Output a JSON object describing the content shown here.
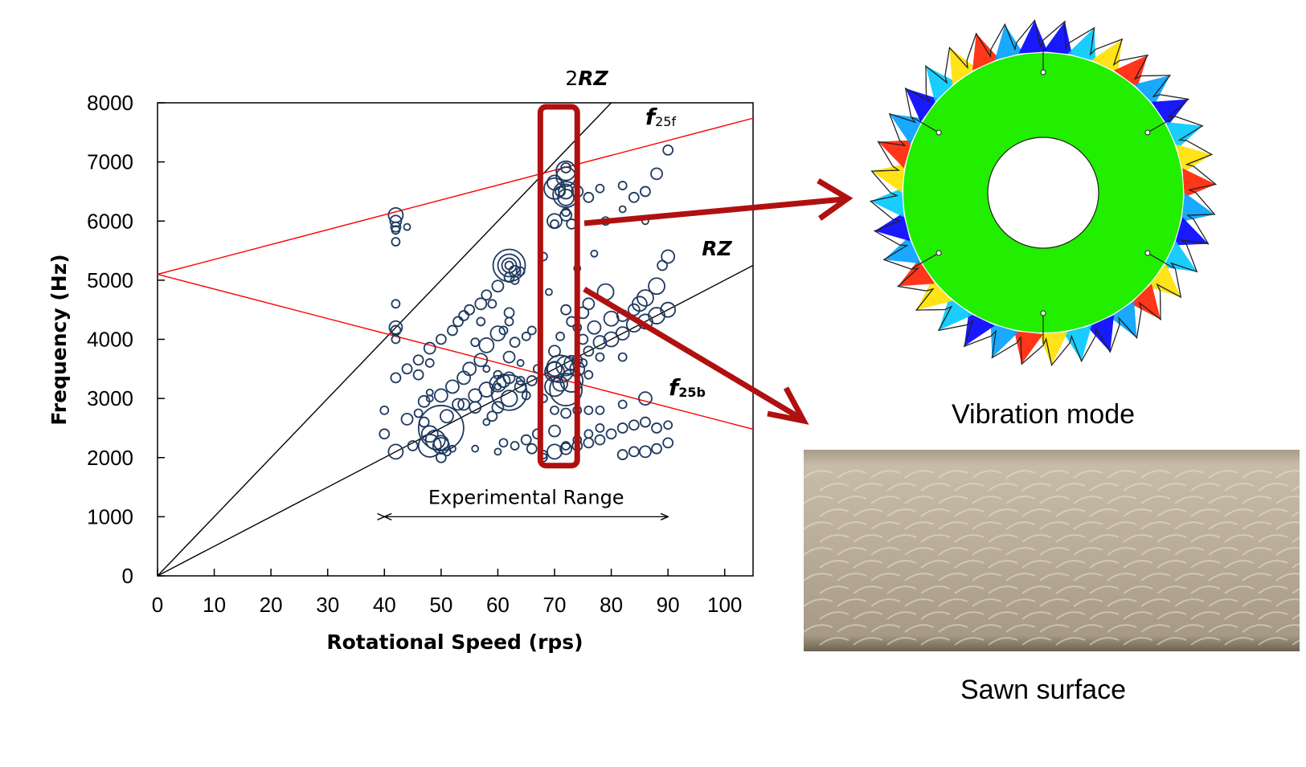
{
  "chart_data": {
    "type": "scatter",
    "xlabel": "Rotational Speed (rps)",
    "ylabel": "Frequency (Hz)",
    "xlim": [
      0,
      105
    ],
    "ylim": [
      0,
      8000
    ],
    "x_ticks": [
      0,
      10,
      20,
      30,
      40,
      50,
      60,
      70,
      80,
      90,
      100
    ],
    "y_ticks": [
      0,
      1000,
      2000,
      3000,
      4000,
      5000,
      6000,
      7000,
      8000
    ],
    "grid": false,
    "lines": [
      {
        "label_prefix": "2",
        "label_main": "RZ",
        "label_sub": "",
        "color": "#000000",
        "x": [
          0,
          80
        ],
        "y": [
          0,
          8000
        ]
      },
      {
        "label_prefix": "",
        "label_main": "RZ",
        "label_sub": "",
        "color": "#000000",
        "x": [
          0,
          105
        ],
        "y": [
          0,
          5250
        ]
      },
      {
        "label_prefix": "",
        "label_main": "f",
        "label_sub": "25f",
        "color": "#ff0000",
        "x": [
          0,
          105
        ],
        "y": [
          5100,
          7740
        ]
      },
      {
        "label_prefix": "",
        "label_main": "f",
        "label_sub": "25b",
        "color": "#ff0000",
        "x": [
          0,
          105
        ],
        "y": [
          5100,
          2480
        ]
      }
    ],
    "points": [
      [
        42,
        6100,
        9
      ],
      [
        42,
        6000,
        7
      ],
      [
        42,
        5900,
        6
      ],
      [
        42,
        5850,
        5
      ],
      [
        44,
        5900,
        4
      ],
      [
        42,
        5650,
        5
      ],
      [
        42,
        4600,
        5
      ],
      [
        42,
        4200,
        8
      ],
      [
        42,
        4150,
        6
      ],
      [
        42,
        4000,
        5
      ],
      [
        40,
        2800,
        5
      ],
      [
        40,
        2400,
        6
      ],
      [
        42,
        3350,
        6
      ],
      [
        44,
        3500,
        6
      ],
      [
        46,
        3650,
        6
      ],
      [
        48,
        3850,
        7
      ],
      [
        48,
        3600,
        5
      ],
      [
        48,
        3100,
        4
      ],
      [
        48,
        3000,
        4
      ],
      [
        46,
        3400,
        6
      ],
      [
        44,
        2650,
        7
      ],
      [
        42,
        2100,
        9
      ],
      [
        45,
        2200,
        6
      ],
      [
        46,
        2750,
        5
      ],
      [
        47,
        2600,
        6
      ],
      [
        48,
        2400,
        10
      ],
      [
        48,
        2200,
        14
      ],
      [
        49,
        2300,
        12
      ],
      [
        50,
        2250,
        9
      ],
      [
        50,
        2500,
        28
      ],
      [
        50,
        2200,
        10
      ],
      [
        50,
        2000,
        6
      ],
      [
        51,
        2100,
        5
      ],
      [
        52,
        2150,
        4
      ],
      [
        47,
        2950,
        7
      ],
      [
        50,
        3050,
        8
      ],
      [
        52,
        3200,
        8
      ],
      [
        54,
        3350,
        8
      ],
      [
        55,
        3500,
        8
      ],
      [
        57,
        3650,
        8
      ],
      [
        58,
        3900,
        9
      ],
      [
        60,
        4100,
        9
      ],
      [
        51,
        2700,
        8
      ],
      [
        53,
        2900,
        7
      ],
      [
        54,
        2900,
        7
      ],
      [
        56,
        2850,
        7
      ],
      [
        56,
        3050,
        8
      ],
      [
        58,
        3150,
        9
      ],
      [
        60,
        3250,
        10
      ],
      [
        61,
        3300,
        8
      ],
      [
        50,
        4000,
        6
      ],
      [
        52,
        4150,
        6
      ],
      [
        53,
        4300,
        6
      ],
      [
        54,
        4400,
        6
      ],
      [
        55,
        4500,
        6
      ],
      [
        57,
        4600,
        7
      ],
      [
        58,
        4750,
        6
      ],
      [
        60,
        4900,
        7
      ],
      [
        62,
        5050,
        6
      ],
      [
        63,
        5150,
        7
      ],
      [
        58,
        2600,
        4
      ],
      [
        59,
        2700,
        6
      ],
      [
        60,
        2850,
        7
      ],
      [
        62,
        3000,
        10
      ],
      [
        62,
        3100,
        22
      ],
      [
        64,
        3200,
        7
      ],
      [
        66,
        3300,
        6
      ],
      [
        62,
        5250,
        20
      ],
      [
        62,
        5250,
        14
      ],
      [
        62,
        5250,
        9
      ],
      [
        62,
        5250,
        5
      ],
      [
        64,
        5150,
        5
      ],
      [
        63,
        5000,
        5
      ],
      [
        59,
        4600,
        5
      ],
      [
        57,
        4300,
        5
      ],
      [
        61,
        4150,
        5
      ],
      [
        62,
        4450,
        6
      ],
      [
        62,
        4300,
        5
      ],
      [
        62,
        3700,
        7
      ],
      [
        63,
        3950,
        6
      ],
      [
        65,
        4050,
        5
      ],
      [
        66,
        4150,
        5
      ],
      [
        64,
        3600,
        4
      ],
      [
        67,
        3500,
        5
      ],
      [
        60,
        3200,
        4
      ],
      [
        56,
        3950,
        5
      ],
      [
        58,
        3500,
        4
      ],
      [
        60,
        3400,
        5
      ],
      [
        62,
        3350,
        7
      ],
      [
        64,
        3300,
        5
      ],
      [
        65,
        3050,
        5
      ],
      [
        56,
        2150,
        4
      ],
      [
        60,
        2100,
        4
      ],
      [
        61,
        2250,
        5
      ],
      [
        63,
        2200,
        5
      ],
      [
        65,
        2300,
        6
      ],
      [
        67,
        2400,
        6
      ],
      [
        70,
        3500,
        9
      ],
      [
        70,
        3450,
        12
      ],
      [
        71,
        3500,
        17
      ],
      [
        72,
        3550,
        12
      ],
      [
        73,
        3600,
        9
      ],
      [
        74,
        3500,
        9
      ],
      [
        74,
        3650,
        6
      ],
      [
        70,
        3200,
        12
      ],
      [
        71,
        3250,
        9
      ],
      [
        73,
        3300,
        14
      ],
      [
        72,
        3150,
        20
      ],
      [
        68,
        5400,
        5
      ],
      [
        69,
        4800,
        4
      ],
      [
        70,
        3800,
        7
      ],
      [
        71,
        4050,
        5
      ],
      [
        73,
        4300,
        6
      ],
      [
        72,
        4500,
        6
      ],
      [
        75,
        4450,
        7
      ],
      [
        76,
        4600,
        7
      ],
      [
        74,
        4200,
        5
      ],
      [
        70,
        6550,
        13
      ],
      [
        70,
        6650,
        9
      ],
      [
        71,
        6500,
        6
      ],
      [
        72,
        6750,
        12
      ],
      [
        72,
        6500,
        9
      ],
      [
        72,
        6400,
        10
      ],
      [
        72,
        6450,
        16
      ],
      [
        72,
        6850,
        12
      ],
      [
        72,
        6900,
        6
      ],
      [
        70,
        6000,
        9
      ],
      [
        70,
        5950,
        5
      ],
      [
        72,
        6100,
        7
      ],
      [
        72,
        6150,
        5
      ],
      [
        73,
        5950,
        6
      ],
      [
        74,
        6500,
        7
      ],
      [
        76,
        6400,
        6
      ],
      [
        78,
        6550,
        5
      ],
      [
        82,
        6600,
        5
      ],
      [
        74,
        5200,
        4
      ],
      [
        77,
        5450,
        4
      ],
      [
        79,
        6000,
        5
      ],
      [
        82,
        6200,
        4
      ],
      [
        84,
        6400,
        6
      ],
      [
        86,
        6500,
        6
      ],
      [
        88,
        6800,
        7
      ],
      [
        90,
        7200,
        6
      ],
      [
        86,
        6000,
        4
      ],
      [
        75,
        4000,
        6
      ],
      [
        77,
        4200,
        8
      ],
      [
        80,
        4350,
        9
      ],
      [
        82,
        4400,
        7
      ],
      [
        84,
        4500,
        7
      ],
      [
        85,
        4600,
        9
      ],
      [
        86,
        4700,
        10
      ],
      [
        88,
        4900,
        10
      ],
      [
        89,
        5250,
        6
      ],
      [
        90,
        5400,
        8
      ],
      [
        76,
        3800,
        6
      ],
      [
        78,
        3950,
        8
      ],
      [
        80,
        4000,
        9
      ],
      [
        82,
        4100,
        8
      ],
      [
        84,
        4250,
        9
      ],
      [
        86,
        4300,
        9
      ],
      [
        88,
        4400,
        10
      ],
      [
        90,
        4500,
        9
      ],
      [
        75,
        3600,
        5
      ],
      [
        76,
        3400,
        5
      ],
      [
        78,
        3700,
        5
      ],
      [
        82,
        3700,
        5
      ],
      [
        79,
        4800,
        10
      ],
      [
        68,
        3000,
        5
      ],
      [
        70,
        2800,
        5
      ],
      [
        72,
        2750,
        6
      ],
      [
        74,
        2800,
        5
      ],
      [
        76,
        2800,
        5
      ],
      [
        78,
        2800,
        5
      ],
      [
        66,
        2150,
        6
      ],
      [
        68,
        2050,
        5
      ],
      [
        70,
        2100,
        9
      ],
      [
        72,
        2150,
        7
      ],
      [
        74,
        2200,
        6
      ],
      [
        76,
        2250,
        6
      ],
      [
        78,
        2300,
        6
      ],
      [
        80,
        2400,
        6
      ],
      [
        82,
        2500,
        6
      ],
      [
        84,
        2550,
        6
      ],
      [
        86,
        2600,
        6
      ],
      [
        68,
        2000,
        5
      ],
      [
        70,
        2450,
        7
      ],
      [
        72,
        2200,
        5
      ],
      [
        74,
        2300,
        5
      ],
      [
        76,
        2400,
        5
      ],
      [
        78,
        2500,
        5
      ],
      [
        82,
        2050,
        6
      ],
      [
        84,
        2100,
        6
      ],
      [
        86,
        2100,
        7
      ],
      [
        88,
        2150,
        6
      ],
      [
        90,
        2250,
        6
      ],
      [
        82,
        2900,
        5
      ],
      [
        86,
        3000,
        8
      ],
      [
        88,
        2500,
        6
      ],
      [
        90,
        2550,
        5
      ]
    ],
    "annotation": {
      "text": "Experimental Range",
      "x_start": 40,
      "x_end": 90,
      "y": 1000
    },
    "highlight": {
      "x_start": 67.5,
      "x_end": 74,
      "y_min": 2000,
      "y_max": 8000
    }
  },
  "captions": {
    "vibration_mode": "Vibration mode",
    "sawn_surface": "Sawn surface"
  },
  "colors": {
    "marker": "#1f3a5f",
    "highlight": "#b01010",
    "red_line": "#ff0000"
  }
}
